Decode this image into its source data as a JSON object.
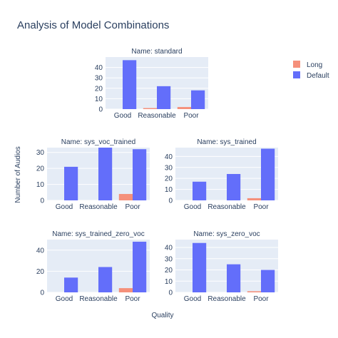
{
  "figure": {
    "title": "Analysis of Model Combinations",
    "xlabel": "Quality",
    "ylabel": "Number of Audios"
  },
  "legend": {
    "placement": "top-right",
    "items": [
      {
        "name": "Long",
        "color": "#f5907b"
      },
      {
        "name": "Default",
        "color": "#636efa"
      }
    ]
  },
  "colors": {
    "plot_bg": "#e5ecf6",
    "grid": "#ffffff",
    "text": "#2a3f5f",
    "long": "#f5907b",
    "default": "#636efa"
  },
  "chart_data": [
    {
      "type": "bar",
      "title": "Name: standard",
      "categories": [
        "Good",
        "Reasonable",
        "Poor"
      ],
      "series": [
        {
          "name": "Long",
          "values": [
            0,
            1,
            2
          ]
        },
        {
          "name": "Default",
          "values": [
            47,
            22,
            18
          ]
        }
      ],
      "ylim": [
        0,
        50
      ],
      "yticks": [
        0,
        10,
        20,
        30,
        40
      ],
      "grid": true
    },
    {
      "type": "bar",
      "title": "Name: sys_voc_trained",
      "categories": [
        "Good",
        "Reasonable",
        "Poor"
      ],
      "series": [
        {
          "name": "Long",
          "values": [
            0,
            0,
            4
          ]
        },
        {
          "name": "Default",
          "values": [
            21,
            33,
            32
          ]
        }
      ],
      "ylim": [
        0,
        33
      ],
      "yticks": [
        0,
        10,
        20,
        30
      ],
      "grid": true
    },
    {
      "type": "bar",
      "title": "Name: sys_trained",
      "categories": [
        "Good",
        "Reasonable",
        "Poor"
      ],
      "series": [
        {
          "name": "Long",
          "values": [
            0,
            0,
            2
          ]
        },
        {
          "name": "Default",
          "values": [
            17,
            24,
            47
          ]
        }
      ],
      "ylim": [
        0,
        48
      ],
      "yticks": [
        0,
        10,
        20,
        30,
        40
      ],
      "grid": true
    },
    {
      "type": "bar",
      "title": "Name: sys_trained_zero_voc",
      "categories": [
        "Good",
        "Reasonable",
        "Poor"
      ],
      "series": [
        {
          "name": "Long",
          "values": [
            0,
            0,
            4
          ]
        },
        {
          "name": "Default",
          "values": [
            14,
            24,
            48
          ]
        }
      ],
      "ylim": [
        0,
        50
      ],
      "yticks": [
        0,
        20,
        40
      ],
      "grid": true
    },
    {
      "type": "bar",
      "title": "Name: sys_zero_voc",
      "categories": [
        "Good",
        "Reasonable",
        "Poor"
      ],
      "series": [
        {
          "name": "Long",
          "values": [
            0,
            0,
            1
          ]
        },
        {
          "name": "Default",
          "values": [
            44,
            25,
            20
          ]
        }
      ],
      "ylim": [
        0,
        47
      ],
      "yticks": [
        0,
        10,
        20,
        30,
        40
      ],
      "grid": true
    }
  ]
}
